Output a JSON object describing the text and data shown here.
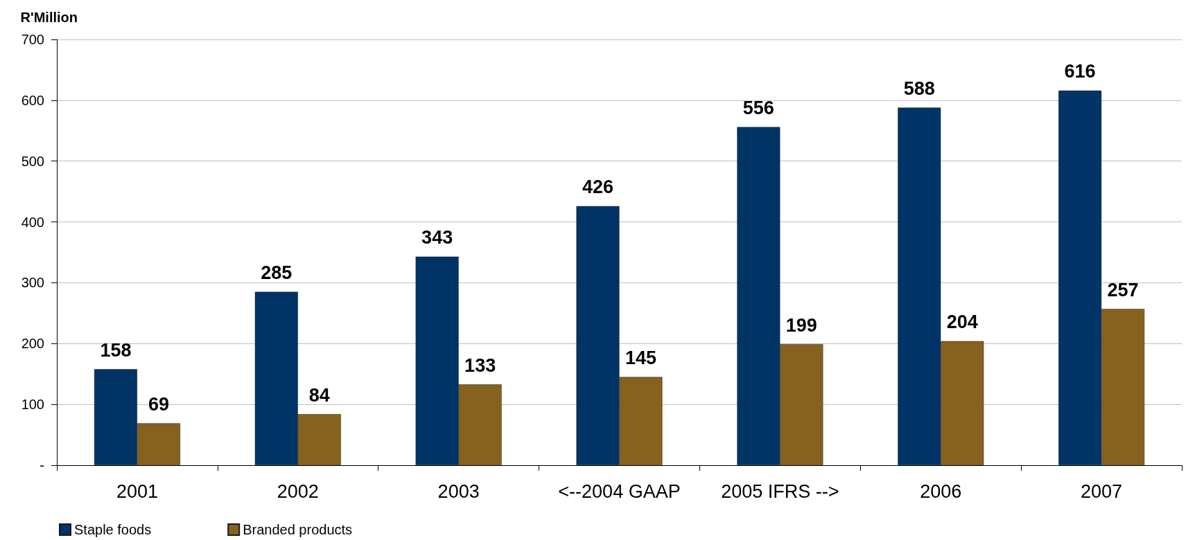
{
  "chart_data": {
    "type": "bar",
    "ylabel": "R'Million",
    "categories": [
      "2001",
      "2002",
      "2003",
      "<--2004 GAAP",
      "2005 IFRS -->",
      "2006",
      "2007"
    ],
    "series": [
      {
        "name": "Staple foods",
        "color": "#003366",
        "values": [
          158,
          285,
          343,
          426,
          556,
          588,
          616
        ]
      },
      {
        "name": "Branded products",
        "color": "#86621e",
        "values": [
          69,
          84,
          133,
          145,
          199,
          204,
          257
        ]
      }
    ],
    "ylim": [
      0,
      700
    ],
    "yticks": [
      {
        "value": 0,
        "label": "-"
      },
      100,
      200,
      300,
      400,
      500,
      600,
      700
    ],
    "grid": "y",
    "legend": "bottom left",
    "data_labels": true
  }
}
